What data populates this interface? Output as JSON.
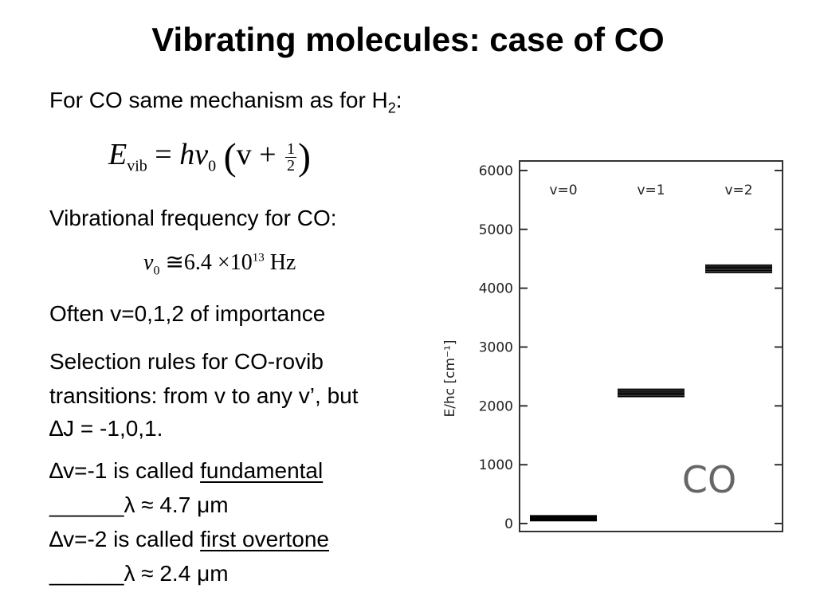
{
  "slide": {
    "title": "Vibrating molecules: case of CO",
    "intro_text": "For CO same mechanism as for H",
    "intro_sub": "2",
    "intro_end": ":",
    "formula_evib": {
      "lhs": "E",
      "lhs_sub": "vib",
      "equals": "=",
      "h": "h",
      "nu": "ν",
      "nu_sub": "0",
      "v": "v",
      "plus": "+",
      "frac_num": "1",
      "frac_den": "2"
    },
    "vib_freq_text": "Vibrational frequency for CO:",
    "formula_nu": {
      "nu": "ν",
      "nu_sub": "0",
      "approx": "≅",
      "value": "6.4",
      "times": "×",
      "base": "10",
      "exp": "13",
      "unit": "Hz"
    },
    "often_text": "Often v=0,1,2 of importance",
    "selection_line1": "Selection rules for CO-rovib",
    "selection_line2": "transitions: from v to any v’, but",
    "selection_line3": "∆J = -1,0,1.",
    "fundamental": {
      "prefix": "∆v=-1 is called ",
      "term": "fundamental",
      "blank": "______",
      "lambda": "λ ≈ 4.7 μm"
    },
    "overtone": {
      "prefix": "∆v=-2 is called ",
      "term": "first overtone",
      "blank": "______",
      "lambda": "λ ≈ 2.4 μm"
    }
  },
  "chart_data": {
    "type": "bar",
    "ylabel": "E/hc [cm⁻¹]",
    "ylim": [
      0,
      6000
    ],
    "yticks": [
      0,
      1000,
      2000,
      3000,
      4000,
      5000,
      6000
    ],
    "annotation": "CO",
    "levels": [
      {
        "label": "v=0",
        "energies": [
          50,
          70,
          90,
          110,
          130
        ]
      },
      {
        "label": "v=1",
        "energies": [
          2160,
          2190,
          2220,
          2250,
          2280
        ]
      },
      {
        "label": "v=2",
        "energies": [
          4270,
          4300,
          4330,
          4360,
          4390
        ]
      }
    ],
    "colors": {
      "lines": "#000000",
      "frame": "#333333",
      "text": "#222222",
      "annotation": "#666666"
    }
  }
}
